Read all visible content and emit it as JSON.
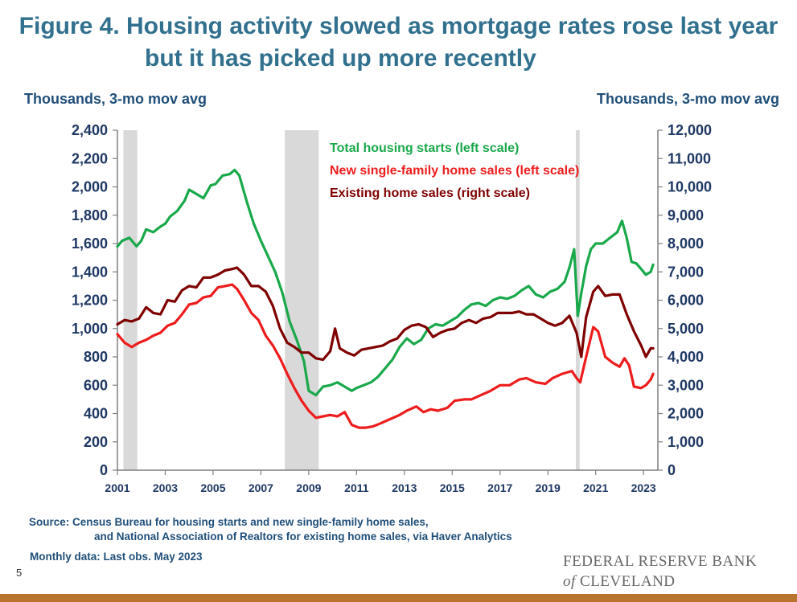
{
  "header": {
    "title_line1": "Figure 4. Housing activity slowed as mortgage rates rose last year",
    "title_line2": "but it has picked up more recently"
  },
  "chart_data": {
    "type": "line",
    "title": "Figure 4. Housing activity slowed as mortgage rates rose last year but it has picked up more recently",
    "ylabel_left": "Thousands, 3-mo mov avg",
    "ylabel_right": "Thousands, 3-mo mov avg",
    "ylim_left": [
      0,
      2400
    ],
    "ylim_right": [
      0,
      12000
    ],
    "yticks_left": [
      "0",
      "200",
      "400",
      "600",
      "800",
      "1,000",
      "1,200",
      "1,400",
      "1,600",
      "1,800",
      "2,000",
      "2,200",
      "2,400"
    ],
    "yticks_right": [
      "0",
      "1,000",
      "2,000",
      "3,000",
      "4,000",
      "5,000",
      "6,000",
      "7,000",
      "8,000",
      "9,000",
      "10,000",
      "11,000",
      "12,000"
    ],
    "xlim": [
      2001.0,
      2023.6
    ],
    "xticks": [
      "2001",
      "2003",
      "2005",
      "2007",
      "2009",
      "2011",
      "2013",
      "2015",
      "2017",
      "2019",
      "2021",
      "2023"
    ],
    "recessions": [
      [
        2001.25,
        2001.83
      ],
      [
        2008.0,
        2009.42
      ],
      [
        2020.17,
        2020.33
      ]
    ],
    "legend_placement": "top-center",
    "series": [
      {
        "name": "Total housing starts (left scale)",
        "axis": "left",
        "color": "#19a84a",
        "x": [
          2001.0,
          2001.2,
          2001.5,
          2001.8,
          2002.0,
          2002.2,
          2002.5,
          2002.8,
          2003.0,
          2003.2,
          2003.5,
          2003.8,
          2004.0,
          2004.3,
          2004.6,
          2004.9,
          2005.1,
          2005.4,
          2005.7,
          2005.9,
          2006.1,
          2006.4,
          2006.7,
          2007.0,
          2007.3,
          2007.6,
          2007.9,
          2008.2,
          2008.5,
          2008.8,
          2009.0,
          2009.3,
          2009.6,
          2009.9,
          2010.2,
          2010.5,
          2010.8,
          2011.0,
          2011.3,
          2011.6,
          2011.9,
          2012.2,
          2012.5,
          2012.8,
          2013.1,
          2013.4,
          2013.7,
          2014.0,
          2014.3,
          2014.6,
          2014.9,
          2015.2,
          2015.5,
          2015.8,
          2016.1,
          2016.4,
          2016.7,
          2017.0,
          2017.3,
          2017.6,
          2017.9,
          2018.2,
          2018.5,
          2018.8,
          2019.1,
          2019.4,
          2019.7,
          2019.9,
          2020.1,
          2020.25,
          2020.4,
          2020.6,
          2020.8,
          2021.0,
          2021.3,
          2021.6,
          2021.9,
          2022.1,
          2022.3,
          2022.5,
          2022.7,
          2022.9,
          2023.1,
          2023.3,
          2023.4
        ],
        "values": [
          1580,
          1620,
          1640,
          1580,
          1620,
          1700,
          1680,
          1720,
          1740,
          1790,
          1830,
          1900,
          1980,
          1950,
          1920,
          2010,
          2020,
          2080,
          2090,
          2120,
          2080,
          1900,
          1740,
          1620,
          1510,
          1400,
          1250,
          1050,
          920,
          770,
          560,
          530,
          590,
          600,
          620,
          590,
          560,
          580,
          600,
          620,
          660,
          720,
          780,
          870,
          930,
          890,
          920,
          1000,
          1030,
          1020,
          1050,
          1080,
          1130,
          1170,
          1180,
          1160,
          1200,
          1220,
          1210,
          1230,
          1270,
          1300,
          1240,
          1220,
          1260,
          1280,
          1330,
          1430,
          1560,
          1090,
          1250,
          1440,
          1560,
          1600,
          1600,
          1640,
          1680,
          1760,
          1640,
          1470,
          1460,
          1420,
          1380,
          1400,
          1450
        ]
      },
      {
        "name": "New single-family home sales (left scale)",
        "axis": "left",
        "color": "#ee1c1c",
        "x": [
          2001.0,
          2001.3,
          2001.6,
          2001.9,
          2002.2,
          2002.5,
          2002.8,
          2003.1,
          2003.4,
          2003.7,
          2004.0,
          2004.3,
          2004.6,
          2004.9,
          2005.2,
          2005.5,
          2005.8,
          2006.0,
          2006.3,
          2006.6,
          2006.9,
          2007.2,
          2007.5,
          2007.8,
          2008.1,
          2008.4,
          2008.7,
          2009.0,
          2009.3,
          2009.6,
          2009.9,
          2010.2,
          2010.5,
          2010.8,
          2011.1,
          2011.4,
          2011.7,
          2012.0,
          2012.4,
          2012.8,
          2013.1,
          2013.5,
          2013.8,
          2014.1,
          2014.4,
          2014.8,
          2015.1,
          2015.5,
          2015.8,
          2016.2,
          2016.6,
          2017.0,
          2017.4,
          2017.8,
          2018.1,
          2018.5,
          2018.9,
          2019.2,
          2019.6,
          2020.0,
          2020.2,
          2020.35,
          2020.6,
          2020.9,
          2021.1,
          2021.4,
          2021.7,
          2022.0,
          2022.2,
          2022.4,
          2022.6,
          2022.9,
          2023.1,
          2023.3,
          2023.4
        ],
        "values": [
          960,
          900,
          870,
          900,
          920,
          950,
          970,
          1020,
          1040,
          1100,
          1170,
          1180,
          1220,
          1230,
          1290,
          1300,
          1310,
          1280,
          1200,
          1110,
          1060,
          950,
          880,
          790,
          680,
          580,
          490,
          420,
          370,
          380,
          390,
          380,
          410,
          320,
          300,
          300,
          310,
          330,
          360,
          390,
          420,
          450,
          410,
          430,
          420,
          440,
          490,
          500,
          500,
          530,
          560,
          600,
          600,
          640,
          650,
          620,
          610,
          650,
          680,
          700,
          650,
          620,
          800,
          1010,
          980,
          800,
          760,
          730,
          790,
          740,
          590,
          580,
          600,
          640,
          680
        ]
      },
      {
        "name": "Existing home sales (right scale)",
        "axis": "right",
        "color": "#7f0000",
        "x": [
          2001.0,
          2001.3,
          2001.6,
          2001.9,
          2002.2,
          2002.5,
          2002.8,
          2003.1,
          2003.4,
          2003.7,
          2004.0,
          2004.3,
          2004.6,
          2004.9,
          2005.2,
          2005.5,
          2005.8,
          2006.0,
          2006.3,
          2006.6,
          2006.9,
          2007.2,
          2007.5,
          2007.8,
          2008.1,
          2008.4,
          2008.7,
          2009.0,
          2009.3,
          2009.6,
          2009.9,
          2010.1,
          2010.3,
          2010.6,
          2010.9,
          2011.2,
          2011.5,
          2011.8,
          2012.1,
          2012.4,
          2012.7,
          2013.0,
          2013.3,
          2013.6,
          2013.9,
          2014.2,
          2014.5,
          2014.8,
          2015.1,
          2015.4,
          2015.7,
          2016.0,
          2016.3,
          2016.6,
          2016.9,
          2017.2,
          2017.5,
          2017.8,
          2018.1,
          2018.4,
          2018.7,
          2019.0,
          2019.3,
          2019.6,
          2019.9,
          2020.2,
          2020.4,
          2020.6,
          2020.9,
          2021.1,
          2021.4,
          2021.7,
          2022.0,
          2022.3,
          2022.6,
          2022.9,
          2023.1,
          2023.3,
          2023.4
        ],
        "values": [
          5150,
          5300,
          5250,
          5350,
          5750,
          5550,
          5500,
          6000,
          5950,
          6350,
          6500,
          6450,
          6800,
          6800,
          6900,
          7050,
          7100,
          7150,
          6900,
          6500,
          6500,
          6300,
          5800,
          5000,
          4500,
          4350,
          4150,
          4150,
          3950,
          3900,
          4200,
          5000,
          4300,
          4150,
          4050,
          4250,
          4300,
          4350,
          4400,
          4550,
          4650,
          4950,
          5100,
          5150,
          5050,
          4700,
          4850,
          4950,
          5000,
          5200,
          5300,
          5200,
          5350,
          5400,
          5550,
          5550,
          5550,
          5600,
          5500,
          5500,
          5350,
          5200,
          5100,
          5200,
          5450,
          4850,
          4000,
          5400,
          6300,
          6500,
          6150,
          6200,
          6200,
          5500,
          4900,
          4400,
          4000,
          4300,
          4300
        ]
      }
    ]
  },
  "footer": {
    "source_line1": "Source: Census Bureau for housing starts and new single-family home sales,",
    "source_line2": "and National Association of Realtors for existing home sales, via Haver Analytics",
    "note": "Monthly data: Last obs. May 2023",
    "page_number": "5",
    "brand_line1": "FEDERAL RESERVE BANK",
    "brand_of": "of",
    "brand_line2": "CLEVELAND",
    "bar_color": "#b8742d"
  }
}
